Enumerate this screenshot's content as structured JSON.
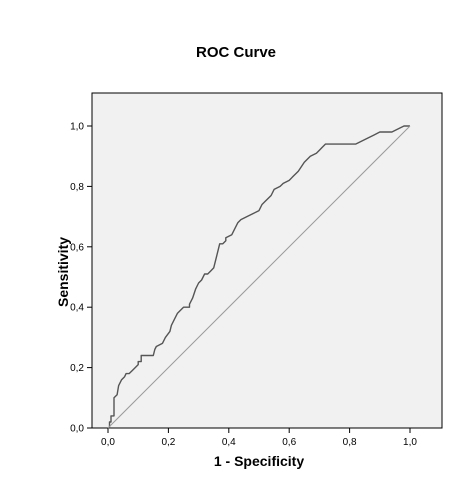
{
  "chart_data": {
    "type": "line",
    "title": "ROC Curve",
    "xlabel": "1 - Specificity",
    "ylabel": "Sensitivity",
    "xlim": [
      0.0,
      1.0
    ],
    "ylim": [
      0.0,
      1.0
    ],
    "xticks": [
      "0,0",
      "0,2",
      "0,4",
      "0,6",
      "0,8",
      "1,0"
    ],
    "yticks": [
      "0,0",
      "0,2",
      "0,4",
      "0,6",
      "0,8",
      "1,0"
    ],
    "tick_values": [
      0.0,
      0.2,
      0.4,
      0.6,
      0.8,
      1.0
    ],
    "grid": false,
    "plot_background": "#f1f1f1",
    "series": [
      {
        "color": "#555555",
        "points": [
          [
            0.0,
            0.0
          ],
          [
            0.005,
            0.0
          ],
          [
            0.005,
            0.02
          ],
          [
            0.01,
            0.02
          ],
          [
            0.01,
            0.04
          ],
          [
            0.02,
            0.04
          ],
          [
            0.02,
            0.1
          ],
          [
            0.03,
            0.11
          ],
          [
            0.035,
            0.14
          ],
          [
            0.045,
            0.16
          ],
          [
            0.055,
            0.17
          ],
          [
            0.06,
            0.18
          ],
          [
            0.07,
            0.18
          ],
          [
            0.08,
            0.19
          ],
          [
            0.09,
            0.2
          ],
          [
            0.1,
            0.21
          ],
          [
            0.1,
            0.22
          ],
          [
            0.11,
            0.22
          ],
          [
            0.11,
            0.24
          ],
          [
            0.15,
            0.24
          ],
          [
            0.155,
            0.26
          ],
          [
            0.16,
            0.27
          ],
          [
            0.18,
            0.28
          ],
          [
            0.19,
            0.3
          ],
          [
            0.205,
            0.32
          ],
          [
            0.21,
            0.34
          ],
          [
            0.22,
            0.36
          ],
          [
            0.23,
            0.38
          ],
          [
            0.25,
            0.4
          ],
          [
            0.27,
            0.4
          ],
          [
            0.27,
            0.41
          ],
          [
            0.28,
            0.43
          ],
          [
            0.29,
            0.46
          ],
          [
            0.3,
            0.48
          ],
          [
            0.31,
            0.49
          ],
          [
            0.32,
            0.51
          ],
          [
            0.33,
            0.51
          ],
          [
            0.34,
            0.52
          ],
          [
            0.35,
            0.53
          ],
          [
            0.36,
            0.57
          ],
          [
            0.37,
            0.61
          ],
          [
            0.38,
            0.61
          ],
          [
            0.39,
            0.62
          ],
          [
            0.39,
            0.63
          ],
          [
            0.41,
            0.64
          ],
          [
            0.42,
            0.66
          ],
          [
            0.43,
            0.68
          ],
          [
            0.44,
            0.69
          ],
          [
            0.46,
            0.7
          ],
          [
            0.48,
            0.71
          ],
          [
            0.5,
            0.72
          ],
          [
            0.51,
            0.74
          ],
          [
            0.52,
            0.75
          ],
          [
            0.54,
            0.77
          ],
          [
            0.55,
            0.79
          ],
          [
            0.57,
            0.8
          ],
          [
            0.58,
            0.81
          ],
          [
            0.6,
            0.82
          ],
          [
            0.61,
            0.83
          ],
          [
            0.63,
            0.85
          ],
          [
            0.65,
            0.88
          ],
          [
            0.67,
            0.9
          ],
          [
            0.69,
            0.91
          ],
          [
            0.7,
            0.92
          ],
          [
            0.71,
            0.93
          ],
          [
            0.72,
            0.94
          ],
          [
            0.75,
            0.94
          ],
          [
            0.8,
            0.94
          ],
          [
            0.82,
            0.94
          ],
          [
            0.86,
            0.96
          ],
          [
            0.88,
            0.97
          ],
          [
            0.9,
            0.98
          ],
          [
            0.92,
            0.98
          ],
          [
            0.94,
            0.98
          ],
          [
            0.96,
            0.99
          ],
          [
            0.98,
            1.0
          ],
          [
            1.0,
            1.0
          ]
        ]
      },
      {
        "color": "#9a9a9a",
        "points": [
          [
            0.0,
            0.0
          ],
          [
            1.0,
            1.0
          ]
        ]
      }
    ]
  }
}
